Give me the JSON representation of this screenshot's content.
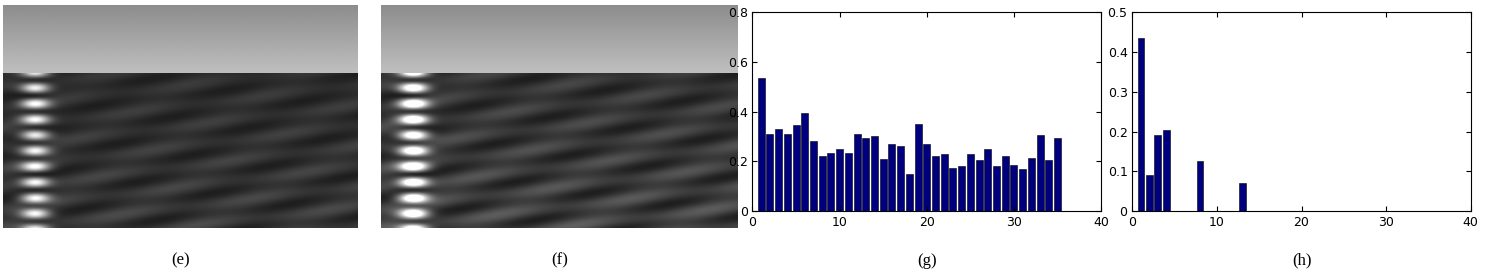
{
  "chart_data": [
    {
      "type": "image",
      "xlabel": "(e)"
    },
    {
      "type": "image",
      "xlabel": "(f)"
    },
    {
      "type": "bar",
      "xlabel": "(g)",
      "color": "#00007f",
      "x": [
        1,
        2,
        3,
        4,
        5,
        6,
        7,
        8,
        9,
        10,
        11,
        12,
        13,
        14,
        15,
        16,
        17,
        18,
        19,
        20,
        21,
        22,
        23,
        24,
        25,
        26,
        27,
        28,
        29,
        30,
        31,
        32,
        33,
        34,
        35
      ],
      "values": [
        0.535,
        0.31,
        0.33,
        0.31,
        0.345,
        0.395,
        0.28,
        0.22,
        0.235,
        0.25,
        0.235,
        0.31,
        0.295,
        0.3,
        0.21,
        0.27,
        0.26,
        0.15,
        0.35,
        0.27,
        0.22,
        0.23,
        0.175,
        0.18,
        0.23,
        0.205,
        0.25,
        0.18,
        0.22,
        0.185,
        0.17,
        0.215,
        0.305,
        0.205,
        0.295
      ],
      "xlim": [
        0,
        40
      ],
      "xticks": [
        0,
        10,
        20,
        30,
        40
      ],
      "ylim": [
        0,
        0.8
      ],
      "yticks": [
        0,
        0.2,
        0.4,
        0.6,
        0.8
      ]
    },
    {
      "type": "bar",
      "xlabel": "(h)",
      "color": "#00007f",
      "x": [
        1,
        2,
        3,
        4,
        5,
        6,
        7,
        8,
        9,
        10,
        11,
        12,
        13,
        14,
        15,
        16,
        17,
        18,
        19,
        20,
        21,
        22,
        23,
        24,
        25,
        26,
        27,
        28,
        29,
        30,
        31,
        32,
        33,
        34,
        35
      ],
      "values": [
        0.435,
        0.09,
        0.19,
        0.205,
        0,
        0,
        0,
        0.125,
        0,
        0,
        0,
        0,
        0.07,
        0,
        0,
        0,
        0,
        0,
        0,
        0,
        0,
        0,
        0,
        0,
        0,
        0,
        0,
        0,
        0,
        0,
        0,
        0,
        0,
        0,
        0
      ],
      "xlim": [
        0,
        40
      ],
      "xticks": [
        0,
        10,
        20,
        30,
        40
      ],
      "ylim": [
        0,
        0.5
      ],
      "yticks": [
        0,
        0.1,
        0.2,
        0.3,
        0.4,
        0.5
      ]
    }
  ]
}
